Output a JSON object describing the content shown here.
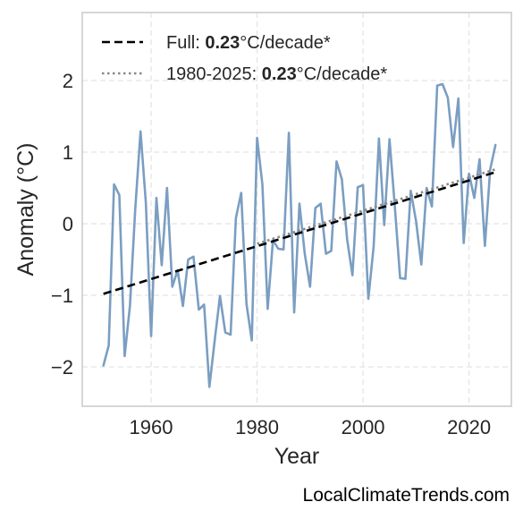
{
  "chart_data": {
    "type": "line",
    "xlabel": "Year",
    "ylabel": "Anomaly (°C)",
    "xlim": [
      1947,
      2028
    ],
    "ylim": [
      -2.55,
      2.95
    ],
    "xticks": [
      1960,
      1980,
      2000,
      2020
    ],
    "xtick_labels": [
      "1960",
      "1980",
      "2000",
      "2020"
    ],
    "yticks": [
      -2,
      -1,
      0,
      1,
      2
    ],
    "ytick_labels": [
      "−2",
      "−1",
      "0",
      "1",
      "2"
    ],
    "grid": true,
    "legend_position": "top-left",
    "series": [
      {
        "x": [
          1951,
          1952,
          1953,
          1954,
          1955,
          1956,
          1957,
          1958,
          1959,
          1960,
          1961,
          1962,
          1963,
          1964,
          1965,
          1966,
          1967,
          1968,
          1969,
          1970,
          1971,
          1972,
          1973,
          1974,
          1975,
          1976,
          1977,
          1978,
          1979,
          1980,
          1981,
          1982,
          1983,
          1984,
          1985,
          1986,
          1987,
          1988,
          1989,
          1990,
          1991,
          1992,
          1993,
          1994,
          1995,
          1996,
          1997,
          1998,
          1999,
          2000,
          2001,
          2002,
          2003,
          2004,
          2005,
          2006,
          2007,
          2008,
          2009,
          2010,
          2011,
          2012,
          2013,
          2014,
          2015,
          2016,
          2017,
          2018,
          2019,
          2020,
          2021,
          2022,
          2023,
          2024,
          2025
        ],
        "y": [
          -1.98,
          -1.7,
          0.55,
          0.4,
          -1.85,
          -1.15,
          0.2,
          1.29,
          0.3,
          -1.57,
          0.36,
          -0.58,
          0.5,
          -0.88,
          -0.65,
          -1.15,
          -0.5,
          -0.46,
          -1.2,
          -1.13,
          -2.28,
          -1.63,
          -1.01,
          -1.52,
          -1.55,
          0.08,
          0.43,
          -1.12,
          -1.63,
          1.2,
          0.55,
          -1.19,
          -0.23,
          -0.35,
          -0.36,
          1.27,
          -1.24,
          0.28,
          -0.42,
          -0.88,
          0.22,
          0.28,
          -0.42,
          -0.38,
          0.87,
          0.62,
          -0.22,
          -0.72,
          0.51,
          0.54,
          -1.05,
          -0.32,
          1.19,
          -0.02,
          1.18,
          0.24,
          -0.76,
          -0.77,
          0.46,
          0.04,
          -0.57,
          0.5,
          0.24,
          1.93,
          1.95,
          1.76,
          1.07,
          1.75,
          -0.27,
          0.7,
          0.36,
          0.9,
          -0.31,
          0.76,
          1.1
        ],
        "color": "#7b9ec2"
      },
      {
        "name": "Full",
        "type": "trend",
        "style": "dashed",
        "x": [
          1951,
          2025
        ],
        "y": [
          -0.98,
          0.72
        ],
        "color": "#000000"
      },
      {
        "name": "1980-2025",
        "type": "trend",
        "style": "dotted",
        "x": [
          1980,
          2025
        ],
        "y": [
          -0.28,
          0.76
        ],
        "color": "#888888"
      }
    ],
    "legend": [
      {
        "prefix": "Full: ",
        "value": "0.23",
        "suffix": "°C/decade*",
        "style": "dashed",
        "color": "#000000"
      },
      {
        "prefix": "1980-2025: ",
        "value": "0.23",
        "suffix": "°C/decade*",
        "style": "dotted",
        "color": "#888888"
      }
    ],
    "credit": "LocalClimateTrends.com"
  }
}
